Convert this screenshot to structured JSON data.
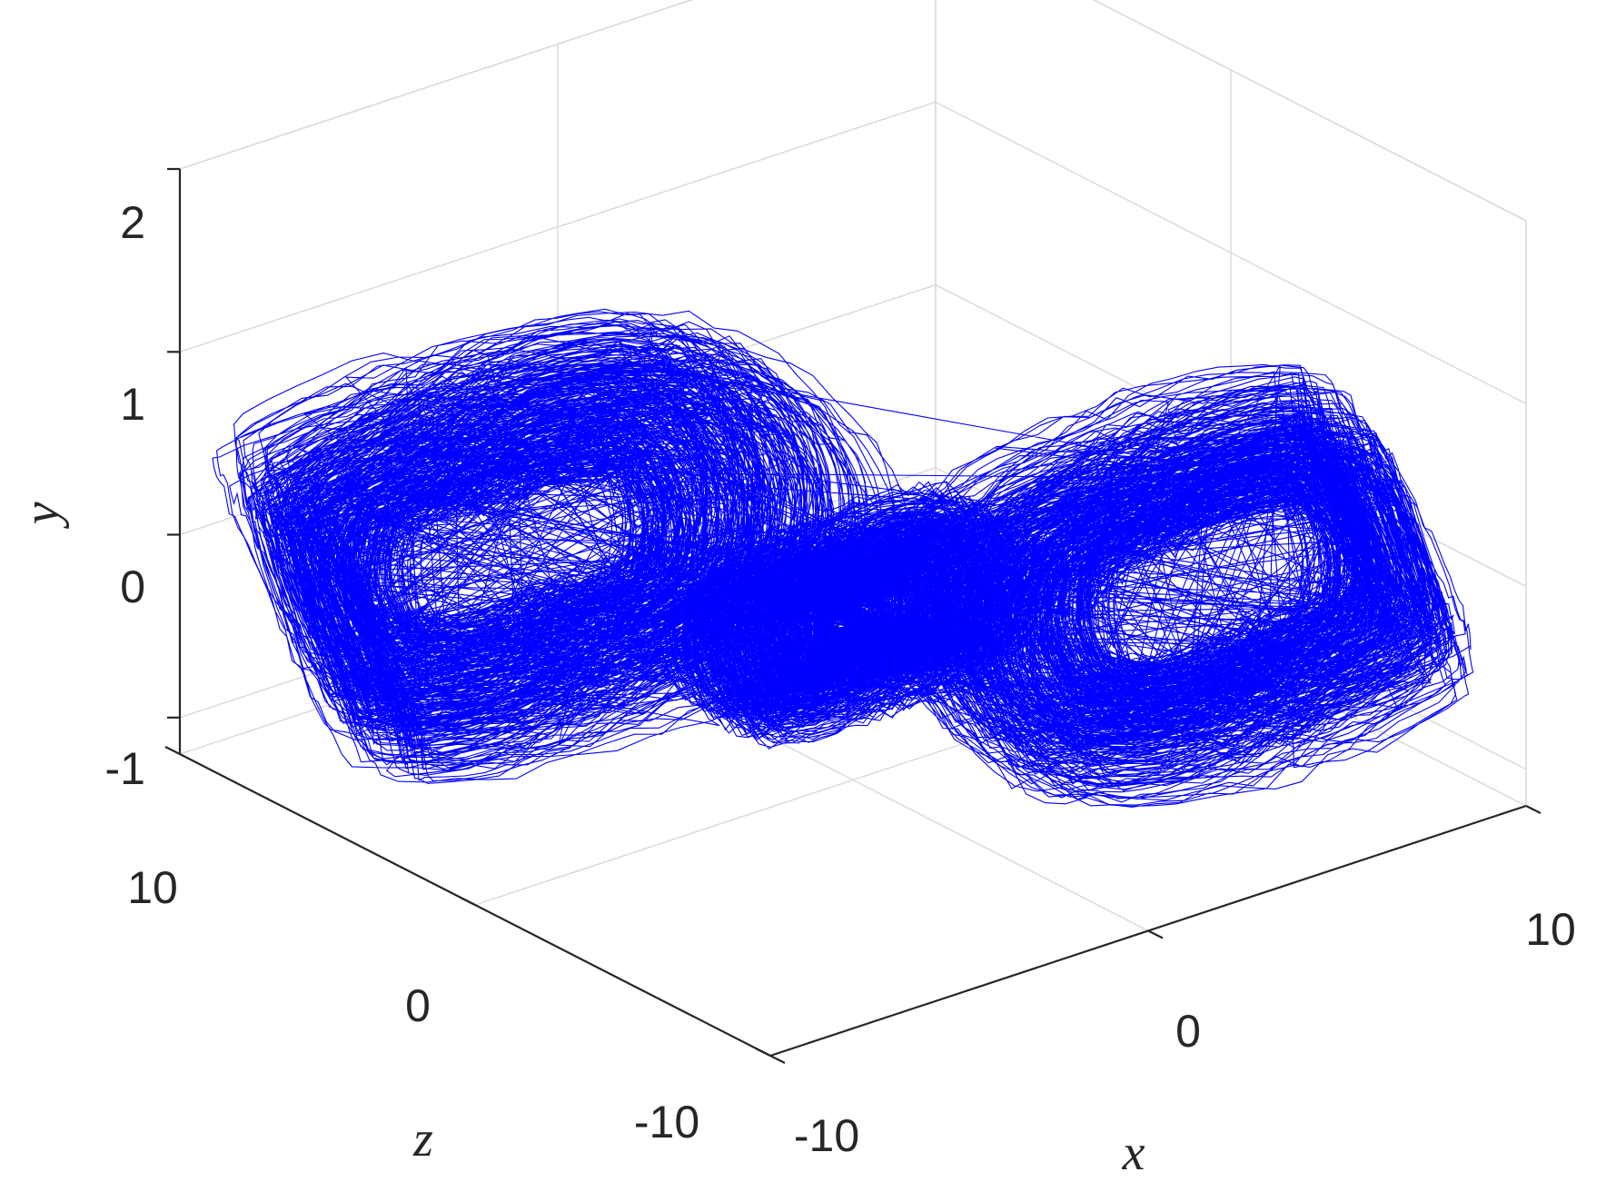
{
  "chart_data": {
    "type": "line",
    "projection": "3d",
    "title": "",
    "xlabel": "x",
    "ylabel": "y",
    "zlabel": "z",
    "xlim": [
      -10,
      10
    ],
    "ylim": [
      -1.2,
      2
    ],
    "zlim": [
      -10,
      10
    ],
    "x_ticks": [
      "-10",
      "0",
      "10"
    ],
    "y_ticks": [
      "-1",
      "0",
      "1",
      "2"
    ],
    "z_ticks": [
      "-10",
      "0",
      "10"
    ],
    "grid": true,
    "series": [
      {
        "color": "#0000ff",
        "description_attractor": {
          "lobes": [
            {
              "x_center": -5.0,
              "z_center": 5.0,
              "y_center": 0.0,
              "radius_x_min": 3.0,
              "radius_x_max": 8.5,
              "radius_y": 1.0
            },
            {
              "x_center": 5.5,
              "z_center": -5.0,
              "y_center": -0.1,
              "radius_x_min": 3.0,
              "radius_x_max": 7.5,
              "radius_y": 0.9
            },
            {
              "x_center": 0.0,
              "z_center": 0.0,
              "y_center": -0.3,
              "radius_x_min": 0.5,
              "radius_x_max": 4.5,
              "radius_y": 0.5
            }
          ]
        }
      }
    ]
  }
}
